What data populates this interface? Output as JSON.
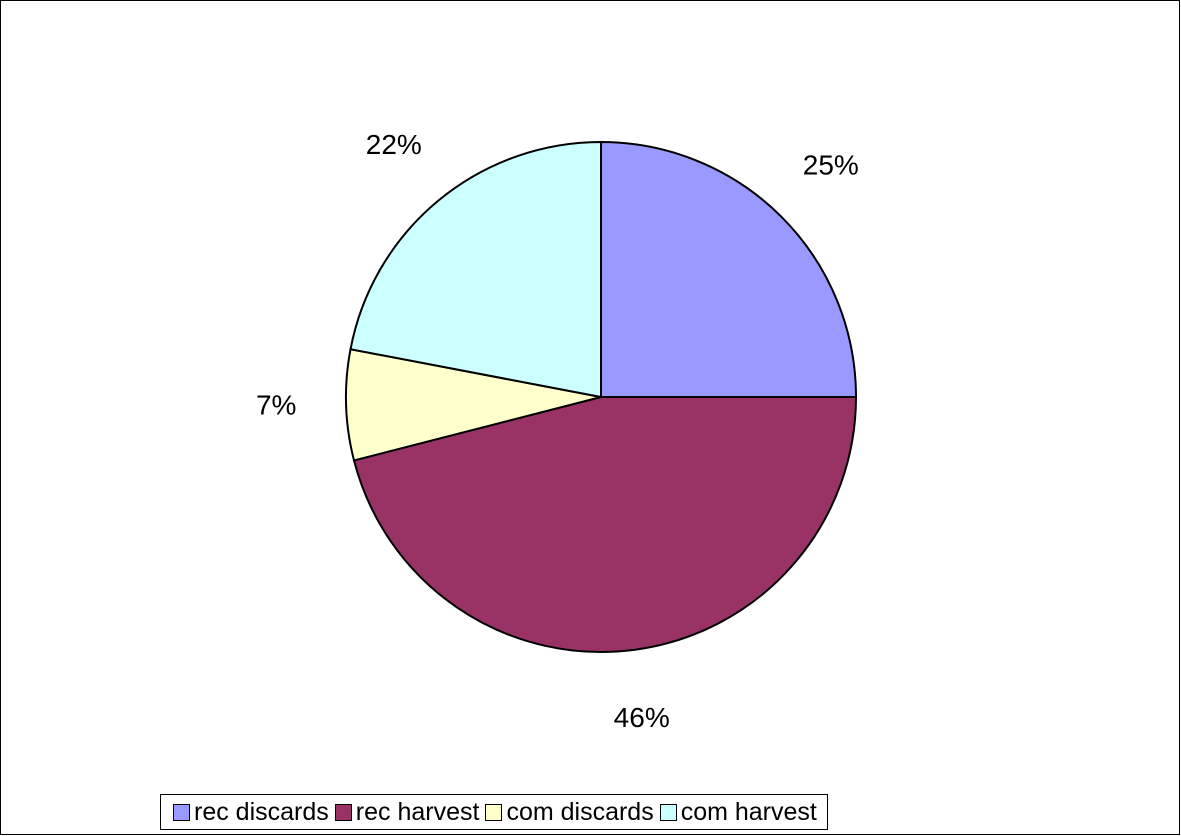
{
  "chart_data": {
    "type": "pie",
    "title": "",
    "slices": [
      {
        "label": "rec discards",
        "value": 25,
        "display": "25%",
        "color": "#9999ff"
      },
      {
        "label": "rec harvest",
        "value": 46,
        "display": "46%",
        "color": "#993366"
      },
      {
        "label": "com discards",
        "value": 7,
        "display": "7%",
        "color": "#ffffcc"
      },
      {
        "label": "com harvest",
        "value": 22,
        "display": "22%",
        "color": "#ccffff"
      }
    ],
    "legend_position": "bottom"
  }
}
